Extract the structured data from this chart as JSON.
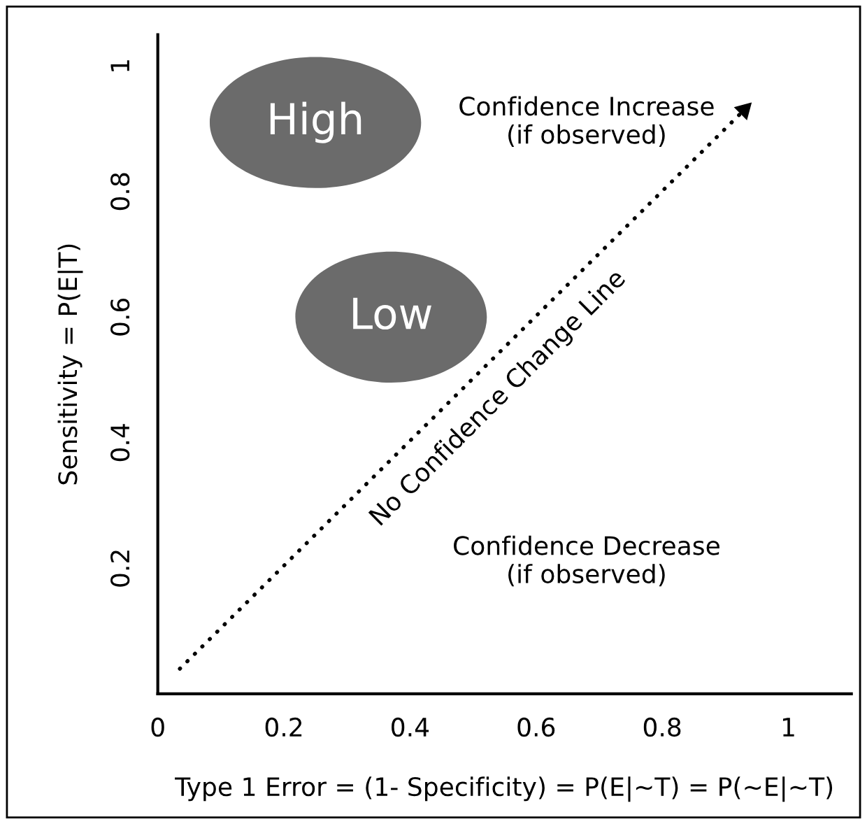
{
  "chart_data": {
    "type": "line",
    "xlabel": "Type 1 Error = (1- Specificity) = P(E|~T) = P(~E|~T)",
    "ylabel": "Sensitivity = P(E|T)",
    "series": [
      {
        "x": [
          0.035,
          0.93
        ],
        "values": [
          0.04,
          0.93
        ],
        "color": "#000000"
      }
    ],
    "line_style": "dotted",
    "xlim": [
      0,
      1.1
    ],
    "ylim": [
      0,
      1.05
    ],
    "xticks": [
      0,
      0.2,
      0.4,
      0.6,
      0.8,
      1
    ],
    "yticks": [
      0.2,
      0.4,
      0.6,
      0.8,
      1
    ],
    "grid": false,
    "legend": false,
    "annotations": [
      "High",
      "Low",
      "Confidence Increase\n(if observed)",
      "Confidence Decrease\n(if observed)",
      "No Confidence Change Line"
    ]
  }
}
